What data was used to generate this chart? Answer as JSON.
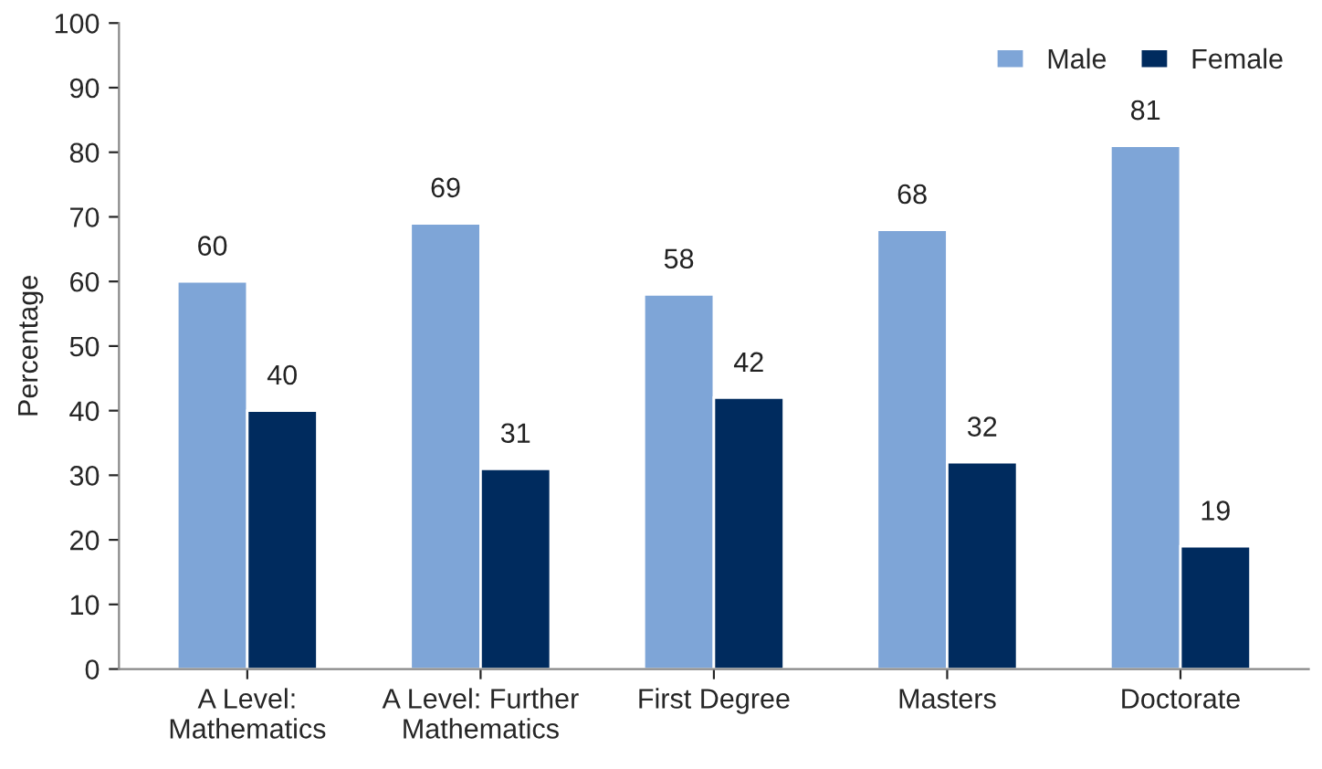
{
  "chart_data": {
    "type": "bar",
    "ylabel": "Percentage",
    "categories": [
      "A Level:\nMathematics",
      "A Level: Further\nMathematics",
      "First Degree",
      "Masters",
      "Doctorate"
    ],
    "series": [
      {
        "name": "Male",
        "color": "#7ea5d7",
        "values": [
          60,
          69,
          58,
          68,
          81
        ]
      },
      {
        "name": "Female",
        "color": "#002b5e",
        "values": [
          40,
          31,
          42,
          32,
          19
        ]
      }
    ],
    "ylim": [
      0,
      100
    ],
    "yticks": [
      0,
      10,
      20,
      30,
      40,
      50,
      60,
      70,
      80,
      90,
      100
    ],
    "data_labels": true,
    "legend": "top right",
    "grid": false
  }
}
